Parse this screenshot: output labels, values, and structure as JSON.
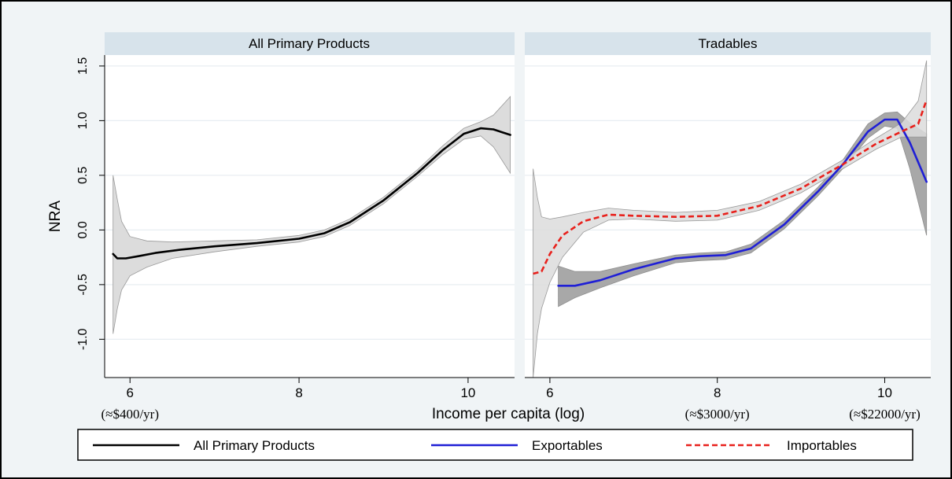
{
  "chart_data": {
    "type": "line",
    "ylabel": "NRA",
    "xlabel": "Income per capita (log)",
    "x_income_notes": [
      {
        "x": 6,
        "label": "(≈$400/yr)"
      },
      {
        "x": 8,
        "label": "(≈$3000/yr)"
      },
      {
        "x": 10,
        "label": "(≈$22000/yr)"
      }
    ],
    "ylim": [
      -1.35,
      1.6
    ],
    "yticks": [
      -1.0,
      -0.5,
      0.0,
      0.5,
      1.0,
      1.5
    ],
    "ytick_labels": [
      "-1.0",
      "-0.5",
      "0.0",
      "0.5",
      "1.0",
      "1.5"
    ],
    "xticks": [
      6,
      8,
      10
    ],
    "xtick_labels": [
      "6",
      "8",
      "10"
    ],
    "grid": true,
    "legend_position": "bottom",
    "colors": {
      "all_primary": "#000000",
      "exportables": "#1f1fd6",
      "importables": "#e8211c",
      "band_dark": "#a8a8a8",
      "band_light": "#dcdcdc",
      "strip": "#d7e3eb",
      "background": "#f0f4f6"
    },
    "panels": [
      {
        "title": "All Primary Products",
        "xlim": [
          5.7,
          10.55
        ],
        "series": [
          {
            "name": "All Primary Products",
            "style": "solid",
            "color_key": "all_primary",
            "points": [
              [
                5.8,
                -0.22
              ],
              [
                5.85,
                -0.26
              ],
              [
                5.95,
                -0.26
              ],
              [
                6.1,
                -0.24
              ],
              [
                6.3,
                -0.21
              ],
              [
                6.6,
                -0.18
              ],
              [
                7.0,
                -0.15
              ],
              [
                7.5,
                -0.12
              ],
              [
                8.0,
                -0.08
              ],
              [
                8.3,
                -0.03
              ],
              [
                8.6,
                0.07
              ],
              [
                9.0,
                0.27
              ],
              [
                9.4,
                0.52
              ],
              [
                9.7,
                0.73
              ],
              [
                9.95,
                0.88
              ],
              [
                10.15,
                0.93
              ],
              [
                10.3,
                0.92
              ],
              [
                10.5,
                0.87
              ]
            ],
            "band": [
              [
                5.8,
                -0.95,
                0.5
              ],
              [
                5.85,
                -0.72,
                0.28
              ],
              [
                5.9,
                -0.55,
                0.08
              ],
              [
                6.0,
                -0.42,
                -0.06
              ],
              [
                6.2,
                -0.34,
                -0.1
              ],
              [
                6.5,
                -0.26,
                -0.11
              ],
              [
                7.0,
                -0.2,
                -0.1
              ],
              [
                7.5,
                -0.15,
                -0.09
              ],
              [
                8.0,
                -0.11,
                -0.05
              ],
              [
                8.3,
                -0.06,
                0.0
              ],
              [
                8.6,
                0.04,
                0.1
              ],
              [
                9.0,
                0.24,
                0.3
              ],
              [
                9.4,
                0.49,
                0.55
              ],
              [
                9.7,
                0.69,
                0.77
              ],
              [
                9.95,
                0.83,
                0.93
              ],
              [
                10.15,
                0.86,
                0.99
              ],
              [
                10.3,
                0.76,
                1.05
              ],
              [
                10.5,
                0.52,
                1.22
              ]
            ]
          }
        ]
      },
      {
        "title": "Tradables",
        "xlim": [
          5.7,
          10.55
        ],
        "series": [
          {
            "name": "Exportables",
            "style": "solid",
            "color_key": "exportables",
            "points": [
              [
                6.1,
                -0.51
              ],
              [
                6.3,
                -0.51
              ],
              [
                6.6,
                -0.46
              ],
              [
                7.0,
                -0.36
              ],
              [
                7.5,
                -0.26
              ],
              [
                7.8,
                -0.24
              ],
              [
                8.1,
                -0.23
              ],
              [
                8.4,
                -0.17
              ],
              [
                8.8,
                0.05
              ],
              [
                9.2,
                0.35
              ],
              [
                9.5,
                0.6
              ],
              [
                9.8,
                0.9
              ],
              [
                10.0,
                1.01
              ],
              [
                10.15,
                1.01
              ],
              [
                10.3,
                0.8
              ],
              [
                10.5,
                0.44
              ]
            ],
            "band": [
              [
                6.1,
                -0.7,
                -0.33
              ],
              [
                6.3,
                -0.62,
                -0.38
              ],
              [
                6.6,
                -0.53,
                -0.38
              ],
              [
                7.0,
                -0.42,
                -0.31
              ],
              [
                7.5,
                -0.3,
                -0.23
              ],
              [
                7.8,
                -0.28,
                -0.21
              ],
              [
                8.1,
                -0.27,
                -0.2
              ],
              [
                8.4,
                -0.21,
                -0.13
              ],
              [
                8.8,
                0.01,
                0.09
              ],
              [
                9.2,
                0.31,
                0.39
              ],
              [
                9.5,
                0.56,
                0.64
              ],
              [
                9.8,
                0.84,
                0.97
              ],
              [
                10.0,
                0.95,
                1.07
              ],
              [
                10.15,
                0.93,
                1.08
              ],
              [
                10.3,
                0.56,
                0.98
              ],
              [
                10.5,
                -0.05,
                0.88
              ]
            ]
          },
          {
            "name": "Importables",
            "style": "dashed",
            "color_key": "importables",
            "points": [
              [
                5.8,
                -0.4
              ],
              [
                5.9,
                -0.38
              ],
              [
                6.0,
                -0.22
              ],
              [
                6.15,
                -0.05
              ],
              [
                6.4,
                0.08
              ],
              [
                6.7,
                0.14
              ],
              [
                7.0,
                0.13
              ],
              [
                7.5,
                0.12
              ],
              [
                8.0,
                0.13
              ],
              [
                8.5,
                0.22
              ],
              [
                9.0,
                0.38
              ],
              [
                9.5,
                0.6
              ],
              [
                9.9,
                0.79
              ],
              [
                10.2,
                0.9
              ],
              [
                10.4,
                0.97
              ],
              [
                10.5,
                1.19
              ]
            ],
            "band": [
              [
                5.8,
                -1.35,
                0.56
              ],
              [
                5.85,
                -0.95,
                0.3
              ],
              [
                5.9,
                -0.72,
                0.12
              ],
              [
                6.0,
                -0.48,
                0.1
              ],
              [
                6.15,
                -0.25,
                0.12
              ],
              [
                6.4,
                -0.02,
                0.16
              ],
              [
                6.7,
                0.09,
                0.2
              ],
              [
                7.0,
                0.1,
                0.18
              ],
              [
                7.5,
                0.08,
                0.16
              ],
              [
                8.0,
                0.09,
                0.18
              ],
              [
                8.5,
                0.18,
                0.26
              ],
              [
                9.0,
                0.34,
                0.42
              ],
              [
                9.5,
                0.56,
                0.64
              ],
              [
                9.9,
                0.74,
                0.84
              ],
              [
                10.2,
                0.85,
                0.98
              ],
              [
                10.4,
                0.85,
                1.18
              ],
              [
                10.5,
                0.85,
                1.55
              ]
            ]
          }
        ]
      }
    ],
    "legend": [
      {
        "label": "All Primary Products",
        "color_key": "all_primary",
        "style": "solid"
      },
      {
        "label": "Exportables",
        "color_key": "exportables",
        "style": "solid"
      },
      {
        "label": "Importables",
        "color_key": "importables",
        "style": "dashed"
      }
    ]
  }
}
